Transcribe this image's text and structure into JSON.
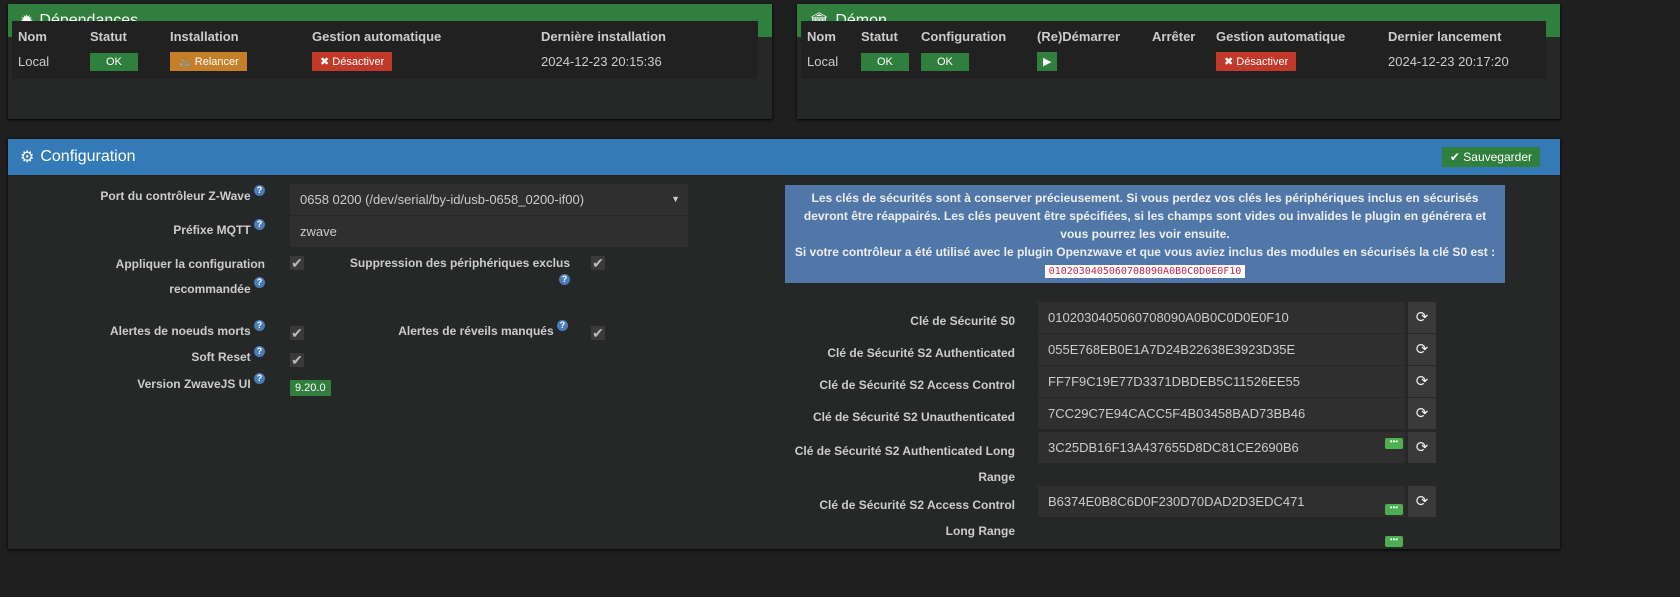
{
  "dependances": {
    "title": "Dépendances",
    "headers": [
      "Nom",
      "Statut",
      "Installation",
      "Gestion automatique",
      "Dernière installation"
    ],
    "row": {
      "name": "Local",
      "status": "OK",
      "install": "Relancer",
      "auto": "Désactiver",
      "date": "2024-12-23 20:15:36"
    }
  },
  "demon": {
    "title": "Démon",
    "headers": [
      "Nom",
      "Statut",
      "Configuration",
      "(Re)Démarrer",
      "Arrêter",
      "Gestion automatique",
      "Dernier lancement"
    ],
    "row": {
      "name": "Local",
      "status": "OK",
      "config": "OK",
      "auto": "Désactiver",
      "date": "2024-12-23 20:17:20"
    }
  },
  "config": {
    "title": "Configuration",
    "save": "Sauvegarder",
    "port_label": "Port du contrôleur Z-Wave",
    "port_value": "0658 0200 (/dev/serial/by-id/usb-0658_0200-if00)",
    "mqtt_label": "Préfixe MQTT",
    "mqtt_value": "zwave",
    "apply_label": "Appliquer la configuration recommandée",
    "apply_checked": true,
    "suppr_label": "Suppression des périphériques exclus",
    "suppr_checked": true,
    "dead_label": "Alertes de noeuds morts",
    "dead_checked": true,
    "wake_label": "Alertes de réveils manqués",
    "wake_checked": true,
    "soft_label": "Soft Reset",
    "soft_checked": true,
    "version_label": "Version ZwaveJS UI",
    "version_value": "9.20.0",
    "info_text": "Les clés de sécurités sont à conserver précieusement. Si vous perdez vos clés les périphériques inclus en sécurisés devront être réappairés. Les clés peuvent être spécifiées, si les champs sont vides ou invalides le plugin en générera et vous pourrez les voir ensuite.",
    "info_text2": "Si votre contrôleur a été utilisé avec le plugin Openzwave et que vous aviez inclus des modules en sécurisés la clé S0 est :",
    "info_code": "0102030405060708090A0B0C0D0E0F10",
    "keys": [
      {
        "label": "Clé de Sécurité S0",
        "value": "0102030405060708090A0B0C0D0E0F10"
      },
      {
        "label": "Clé de Sécurité S2 Authenticated",
        "value": "055E768EB0E1A7D24B22638E3923D35E"
      },
      {
        "label": "Clé de Sécurité S2 Access Control",
        "value": "FF7F9C19E77D3371DBDEB5C11526EE55"
      },
      {
        "label": "Clé de Sécurité S2 Unauthenticated",
        "value": "7CC29C7E94CACC5F4B03458BAD73BB46"
      },
      {
        "label": "Clé de Sécurité S2 Authenticated Long Range",
        "value": "3C25DB16F13A437655D8DC81CE2690B6"
      },
      {
        "label": "Clé de Sécurité S2 Access Control Long Range",
        "value": "B6374E0B8C6D0F230D70DAD2D3EDC471"
      }
    ]
  },
  "colors": {
    "green": "#317f3e",
    "blue": "#337ab7",
    "orange": "#c47f28",
    "red": "#c0392b",
    "info": "#5077a8"
  }
}
